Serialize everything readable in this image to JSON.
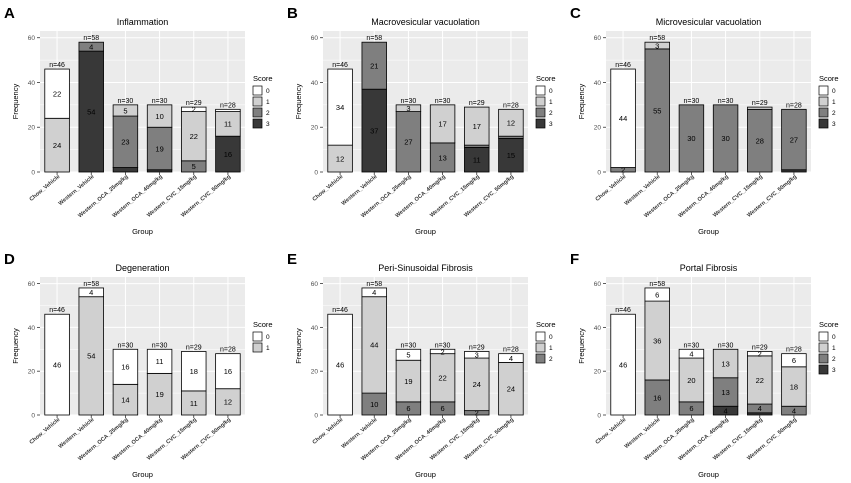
{
  "figure": {
    "groups": [
      "Chow_Vehicle",
      "Western_Vehicle",
      "Western_OCA_25mg/kg",
      "Western_OCA_40mg/kg",
      "Western_CVC_15mg/kg",
      "Western_CVC_50mg/kg"
    ],
    "n_labels": [
      "n=46",
      "n=58",
      "n=30",
      "n=30",
      "n=29",
      "n=28"
    ],
    "x_axis_title": "Group",
    "y_axis_title": "Frequency",
    "legend_title": "Score",
    "score_colors": {
      "0": "#ffffff",
      "1": "#d0d0d0",
      "2": "#7f7f7f",
      "3": "#383838"
    },
    "bar_stroke": "#000000",
    "panel_bg": "#ebebeb",
    "grid_color": "#ffffff"
  },
  "chart_data": [
    {
      "type": "bar",
      "stacked": true,
      "panel_letter": "A",
      "title": "Inflammation",
      "xlabel": "Group",
      "ylabel": "Frequency",
      "ylim": [
        0,
        63
      ],
      "yticks": [
        0,
        20,
        40,
        60
      ],
      "categories": [
        "Chow_Vehicle",
        "Western_Vehicle",
        "Western_OCA_25mg/kg",
        "Western_OCA_40mg/kg",
        "Western_CVC_15mg/kg",
        "Western_CVC_50mg/kg"
      ],
      "legend": [
        "0",
        "1",
        "2",
        "3"
      ],
      "series": [
        {
          "name": "0",
          "values": [
            22,
            0,
            0,
            0,
            2,
            1
          ]
        },
        {
          "name": "1",
          "values": [
            24,
            0,
            5,
            10,
            22,
            11
          ]
        },
        {
          "name": "2",
          "values": [
            0,
            4,
            23,
            19,
            5,
            0
          ]
        },
        {
          "name": "3",
          "values": [
            0,
            54,
            2,
            1,
            0,
            16
          ]
        }
      ],
      "segment_labels": [
        [
          "22",
          "",
          "",
          "",
          "2",
          ""
        ],
        [
          "24",
          "",
          "5",
          "10",
          "22",
          "11"
        ],
        [
          "",
          "4",
          "23",
          "19",
          "5",
          ""
        ],
        [
          "",
          "54",
          "",
          "",
          "",
          "16"
        ]
      ]
    },
    {
      "type": "bar",
      "stacked": true,
      "panel_letter": "B",
      "title": "Macrovesicular vacuolation",
      "xlabel": "Group",
      "ylabel": "Frequency",
      "ylim": [
        0,
        63
      ],
      "yticks": [
        0,
        20,
        40,
        60
      ],
      "categories": [
        "Chow_Vehicle",
        "Western_Vehicle",
        "Western_OCA_25mg/kg",
        "Western_OCA_40mg/kg",
        "Western_CVC_15mg/kg",
        "Western_CVC_50mg/kg"
      ],
      "legend": [
        "0",
        "1",
        "2",
        "3"
      ],
      "series": [
        {
          "name": "0",
          "values": [
            34,
            0,
            0,
            0,
            0,
            0
          ]
        },
        {
          "name": "1",
          "values": [
            12,
            0,
            3,
            17,
            17,
            12
          ]
        },
        {
          "name": "2",
          "values": [
            0,
            21,
            27,
            13,
            1,
            1
          ]
        },
        {
          "name": "3",
          "values": [
            0,
            37,
            0,
            0,
            11,
            15
          ]
        }
      ],
      "segment_labels": [
        [
          "34",
          "",
          "",
          "",
          "",
          ""
        ],
        [
          "12",
          "",
          "3",
          "17",
          "17",
          "12"
        ],
        [
          "",
          "21",
          "27",
          "13",
          "",
          ""
        ],
        [
          "",
          "37",
          "",
          "",
          "11",
          "15"
        ]
      ]
    },
    {
      "type": "bar",
      "stacked": true,
      "panel_letter": "C",
      "title": "Microvesicular vacuolation",
      "xlabel": "Group",
      "ylabel": "Frequency",
      "ylim": [
        0,
        63
      ],
      "yticks": [
        0,
        20,
        40,
        60
      ],
      "categories": [
        "Chow_Vehicle",
        "Western_Vehicle",
        "Western_OCA_25mg/kg",
        "Western_OCA_40mg/kg",
        "Western_CVC_15mg/kg",
        "Western_CVC_50mg/kg"
      ],
      "legend": [
        "0",
        "1",
        "2",
        "3"
      ],
      "series": [
        {
          "name": "0",
          "values": [
            44,
            0,
            0,
            0,
            0,
            0
          ]
        },
        {
          "name": "1",
          "values": [
            0,
            3,
            0,
            0,
            1,
            0
          ]
        },
        {
          "name": "2",
          "values": [
            2,
            55,
            30,
            30,
            28,
            27
          ]
        },
        {
          "name": "3",
          "values": [
            0,
            0,
            0,
            0,
            0,
            1
          ]
        }
      ],
      "segment_labels": [
        [
          "44",
          "",
          "",
          "",
          "",
          ""
        ],
        [
          "",
          "3",
          "",
          "",
          "",
          ""
        ],
        [
          "2",
          "55",
          "30",
          "30",
          "28",
          "27"
        ],
        [
          "",
          "",
          "",
          "",
          "",
          ""
        ]
      ]
    },
    {
      "type": "bar",
      "stacked": true,
      "panel_letter": "D",
      "title": "Degeneration",
      "xlabel": "Group",
      "ylabel": "Frequency",
      "ylim": [
        0,
        63
      ],
      "yticks": [
        0,
        20,
        40,
        60
      ],
      "categories": [
        "Chow_Vehicle",
        "Western_Vehicle",
        "Western_OCA_25mg/kg",
        "Western_OCA_40mg/kg",
        "Western_CVC_15mg/kg",
        "Western_CVC_50mg/kg"
      ],
      "legend": [
        "0",
        "1"
      ],
      "series": [
        {
          "name": "0",
          "values": [
            46,
            4,
            16,
            11,
            18,
            16
          ]
        },
        {
          "name": "1",
          "values": [
            0,
            54,
            14,
            19,
            11,
            12
          ]
        }
      ],
      "segment_labels": [
        [
          "46",
          "4",
          "16",
          "11",
          "18",
          "16"
        ],
        [
          "",
          "54",
          "14",
          "19",
          "11",
          "12"
        ]
      ]
    },
    {
      "type": "bar",
      "stacked": true,
      "panel_letter": "E",
      "title": "Peri-Sinusoidal Fibrosis",
      "xlabel": "Group",
      "ylabel": "Frequency",
      "ylim": [
        0,
        63
      ],
      "yticks": [
        0,
        20,
        40,
        60
      ],
      "categories": [
        "Chow_Vehicle",
        "Western_Vehicle",
        "Western_OCA_25mg/kg",
        "Western_OCA_40mg/kg",
        "Western_CVC_15mg/kg",
        "Western_CVC_50mg/kg"
      ],
      "legend": [
        "0",
        "1",
        "2"
      ],
      "series": [
        {
          "name": "0",
          "values": [
            46,
            4,
            5,
            2,
            3,
            4
          ]
        },
        {
          "name": "1",
          "values": [
            0,
            44,
            19,
            22,
            24,
            24
          ]
        },
        {
          "name": "2",
          "values": [
            0,
            10,
            6,
            6,
            2,
            0
          ]
        }
      ],
      "segment_labels": [
        [
          "46",
          "4",
          "5",
          "2",
          "3",
          "4"
        ],
        [
          "",
          "44",
          "19",
          "22",
          "24",
          "24"
        ],
        [
          "",
          "10",
          "6",
          "6",
          "2",
          ""
        ]
      ]
    },
    {
      "type": "bar",
      "stacked": true,
      "panel_letter": "F",
      "title": "Portal Fibrosis",
      "xlabel": "Group",
      "ylabel": "Frequency",
      "ylim": [
        0,
        63
      ],
      "yticks": [
        0,
        20,
        40,
        60
      ],
      "categories": [
        "Chow_Vehicle",
        "Western_Vehicle",
        "Western_OCA_25mg/kg",
        "Western_OCA_40mg/kg",
        "Western_CVC_15mg/kg",
        "Western_CVC_50mg/kg"
      ],
      "legend": [
        "0",
        "1",
        "2",
        "3"
      ],
      "series": [
        {
          "name": "0",
          "values": [
            46,
            6,
            4,
            0,
            2,
            6
          ]
        },
        {
          "name": "1",
          "values": [
            0,
            36,
            20,
            13,
            22,
            18
          ]
        },
        {
          "name": "2",
          "values": [
            0,
            16,
            6,
            13,
            4,
            4
          ]
        },
        {
          "name": "3",
          "values": [
            0,
            0,
            0,
            4,
            1,
            0
          ]
        }
      ],
      "segment_labels": [
        [
          "46",
          "6",
          "4",
          "",
          "2",
          "6"
        ],
        [
          "",
          "36",
          "20",
          "13",
          "22",
          "18"
        ],
        [
          "",
          "16",
          "6",
          "13",
          "4",
          "4"
        ],
        [
          "",
          "",
          "",
          "4",
          "",
          ""
        ]
      ]
    }
  ]
}
